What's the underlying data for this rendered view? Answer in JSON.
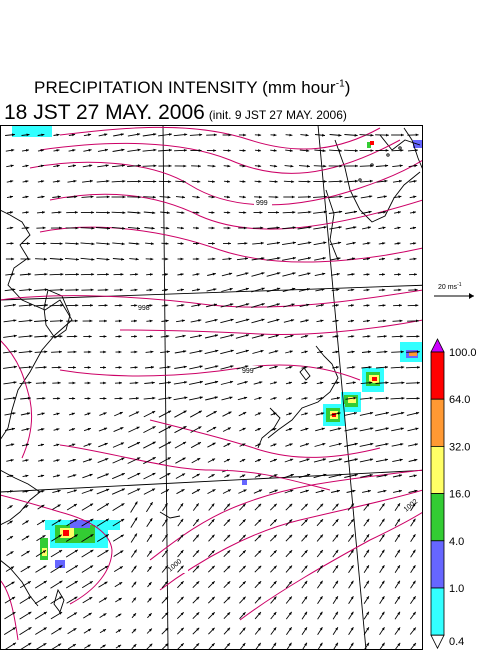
{
  "title": {
    "main": "PRECIPITATION INTENSITY (mm hour",
    "sup": "-1",
    "tail": ")"
  },
  "subtitle": {
    "time": "18 JST 27 MAY. 2006",
    "init": "(init. 9 JST 27 MAY. 2006)"
  },
  "wind_scale": {
    "label": "20 ms",
    "sup": "-1"
  },
  "colorbar": {
    "levels": [
      "100.0",
      "64.0",
      "32.0",
      "16.0",
      "4.0",
      "1.0",
      "0.4"
    ],
    "colors": [
      "#cc00ff",
      "#ff0000",
      "#ff9933",
      "#ffff66",
      "#33cc33",
      "#6666ff",
      "#33ffff"
    ]
  },
  "isobar_labels": [
    "999",
    "998",
    "999",
    "1000",
    "1001",
    "1002"
  ],
  "colors": {
    "isobar": "#cc0066",
    "coast": "#000000",
    "grid": "#000000"
  }
}
